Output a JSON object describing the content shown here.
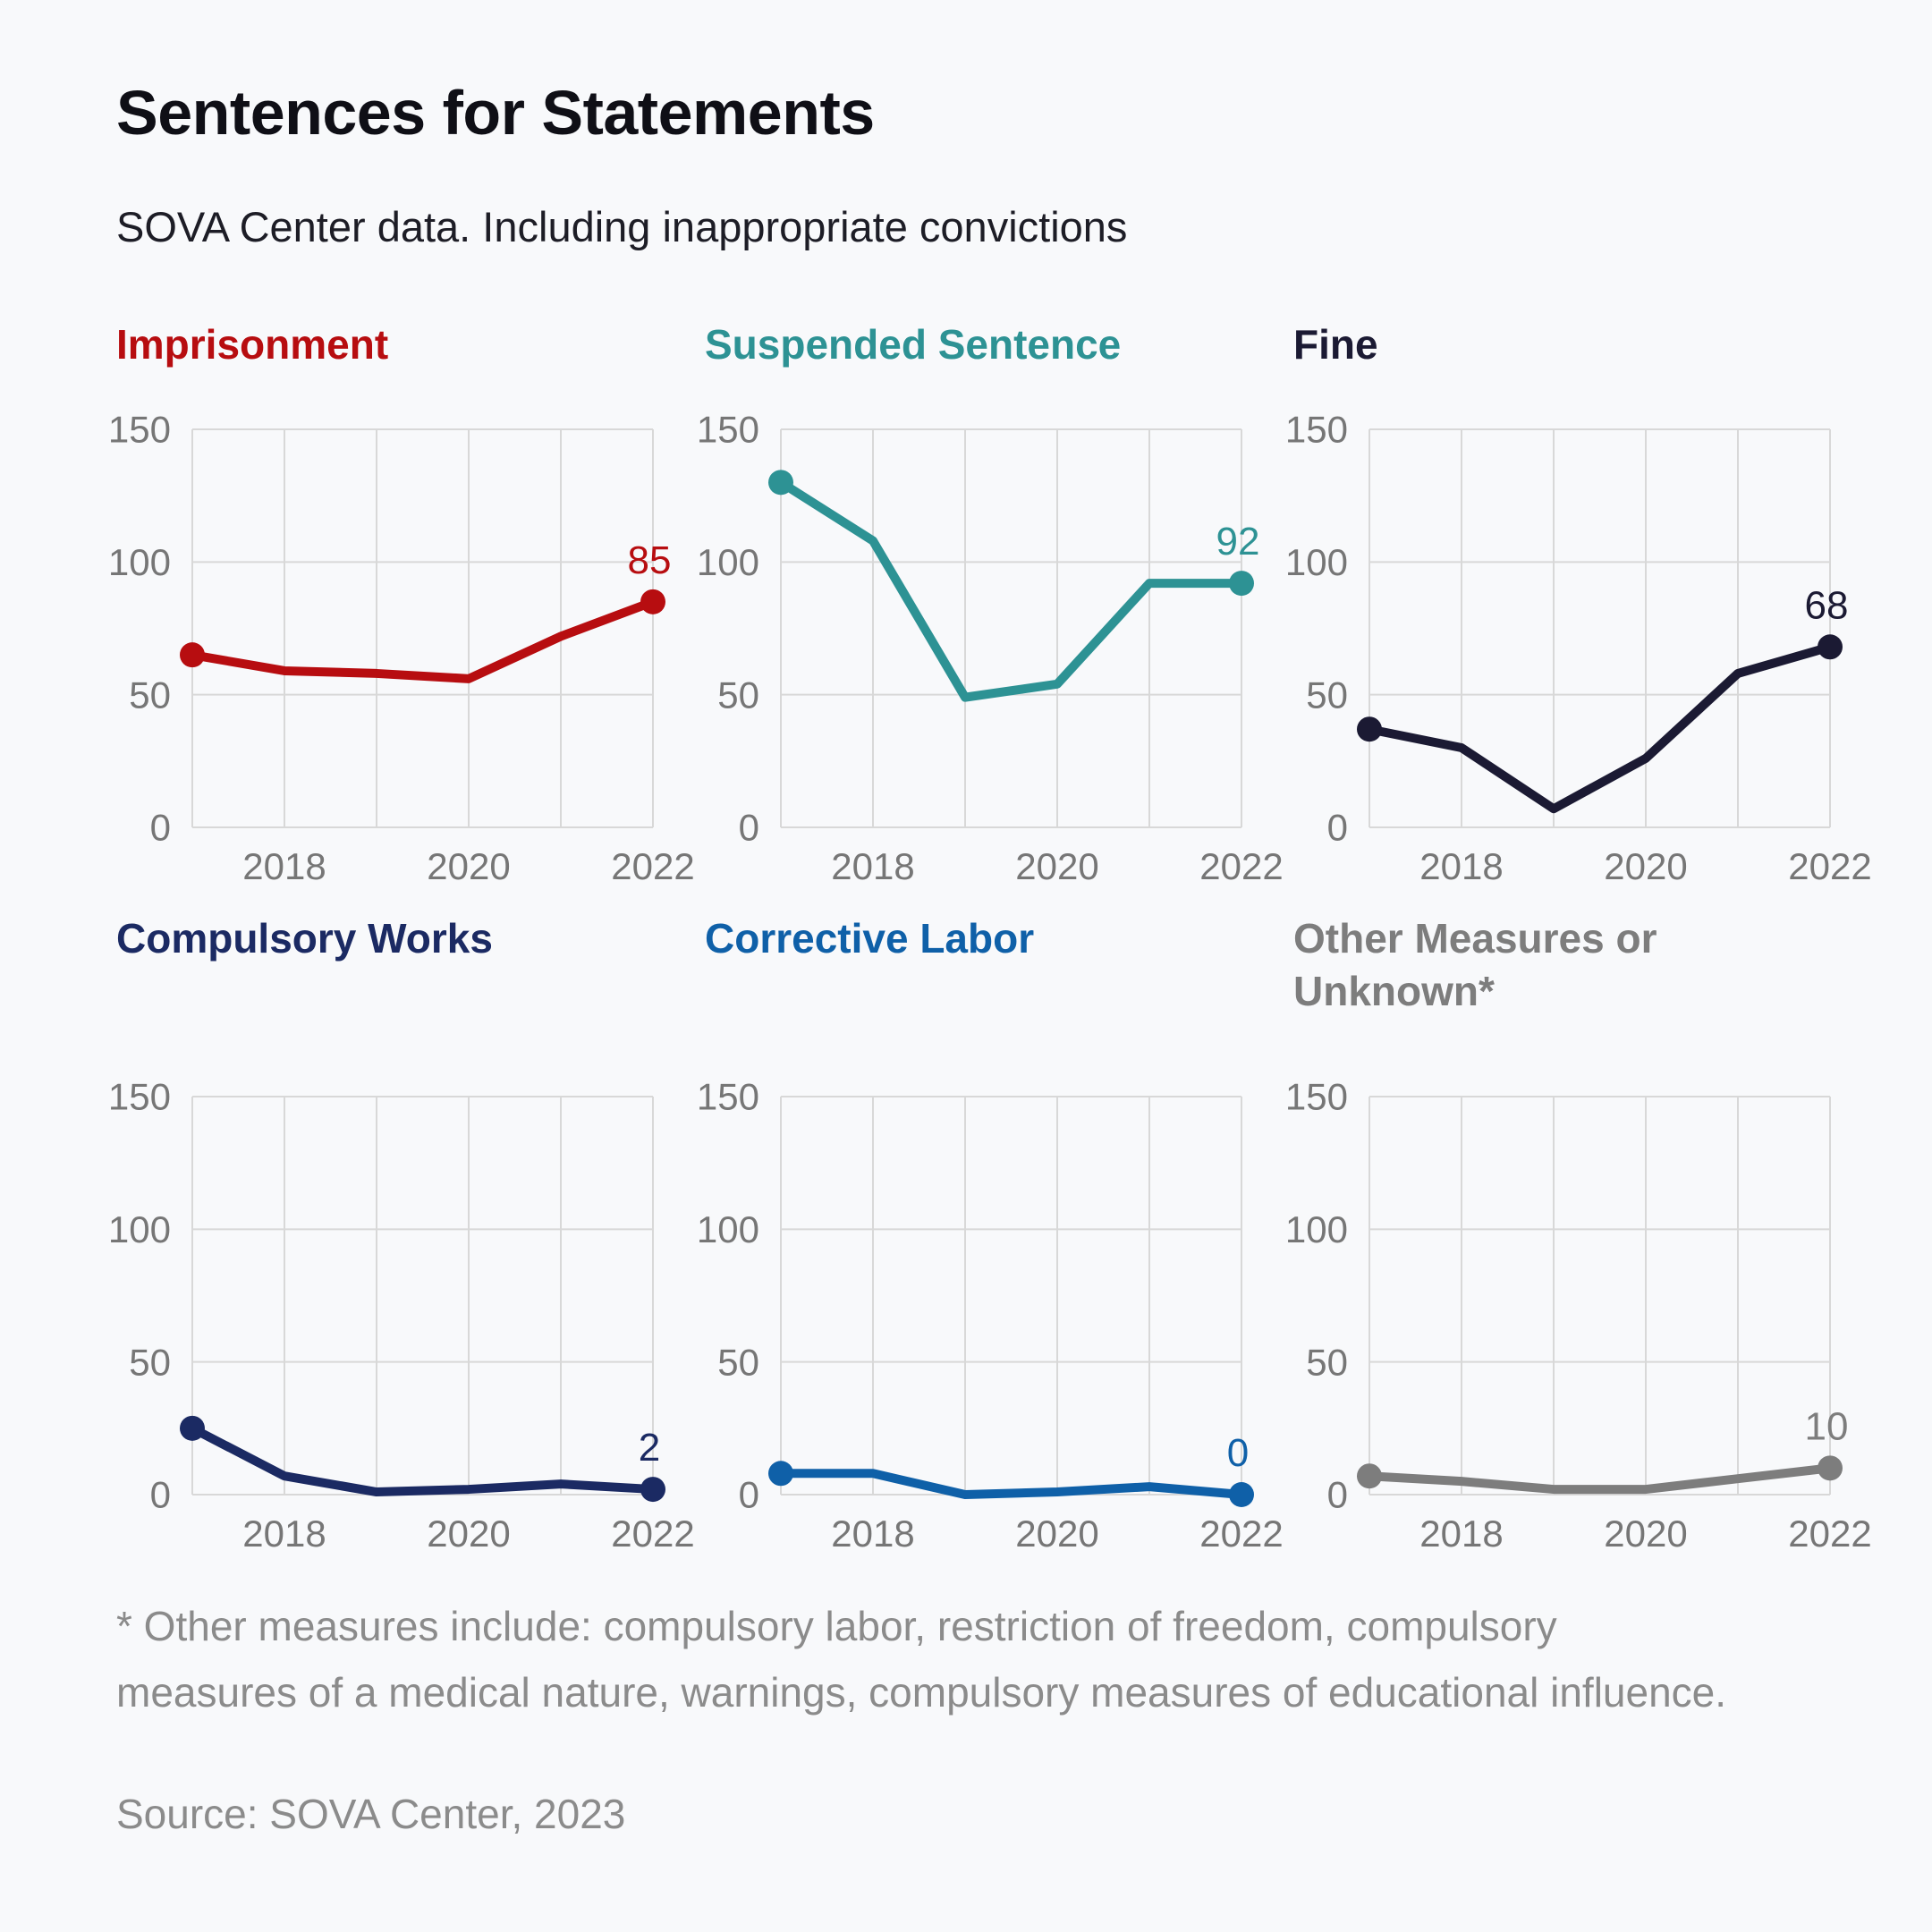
{
  "page": {
    "title": "Sentences for Statements",
    "subtitle": "SOVA Center data. Including inappropriate convictions",
    "footnote": "* Other measures include: compulsory labor, restriction of freedom, compulsory measures of a medical nature, warnings, compulsory measures of educational influence.",
    "source": "Source: SOVA Center, 2023",
    "background_color": "#f8f9fb"
  },
  "axes": {
    "ylim": [
      0,
      150
    ],
    "y_ticks": [
      0,
      50,
      100,
      150
    ],
    "x_tick_labels": [
      "2018",
      "2020",
      "2022"
    ],
    "x_tick_indices": [
      1,
      3,
      5
    ],
    "grid": true,
    "grid_color": "#d8d8d8",
    "tick_label_color": "#767676"
  },
  "chart_data": [
    {
      "type": "line",
      "title": "Imprisonment",
      "color": "#b70d10",
      "x": [
        2017,
        2018,
        2019,
        2020,
        2021,
        2022
      ],
      "values": [
        65,
        59,
        58,
        56,
        72,
        85
      ],
      "end_label": "85"
    },
    {
      "type": "line",
      "title": "Suspended Sentence",
      "color": "#2d9294",
      "x": [
        2017,
        2018,
        2019,
        2020,
        2021,
        2022
      ],
      "values": [
        130,
        108,
        49,
        54,
        92,
        92
      ],
      "end_label": "92"
    },
    {
      "type": "line",
      "title": "Fine",
      "color": "#1b1a33",
      "x": [
        2017,
        2018,
        2019,
        2020,
        2021,
        2022
      ],
      "values": [
        37,
        30,
        7,
        26,
        58,
        68
      ],
      "end_label": "68"
    },
    {
      "type": "line",
      "title": "Compulsory Works",
      "color": "#1b2a63",
      "x": [
        2017,
        2018,
        2019,
        2020,
        2021,
        2022
      ],
      "values": [
        25,
        7,
        1,
        2,
        4,
        2
      ],
      "end_label": "2"
    },
    {
      "type": "line",
      "title": "Corrective Labor",
      "color": "#0f60a8",
      "x": [
        2017,
        2018,
        2019,
        2020,
        2021,
        2022
      ],
      "values": [
        8,
        8,
        0,
        1,
        3,
        0
      ],
      "end_label": "0"
    },
    {
      "type": "line",
      "title": "Other Measures or Unknown*",
      "color": "#7d7d7d",
      "x": [
        2017,
        2018,
        2019,
        2020,
        2021,
        2022
      ],
      "values": [
        7,
        5,
        2,
        2,
        6,
        10
      ],
      "end_label": "10"
    }
  ]
}
